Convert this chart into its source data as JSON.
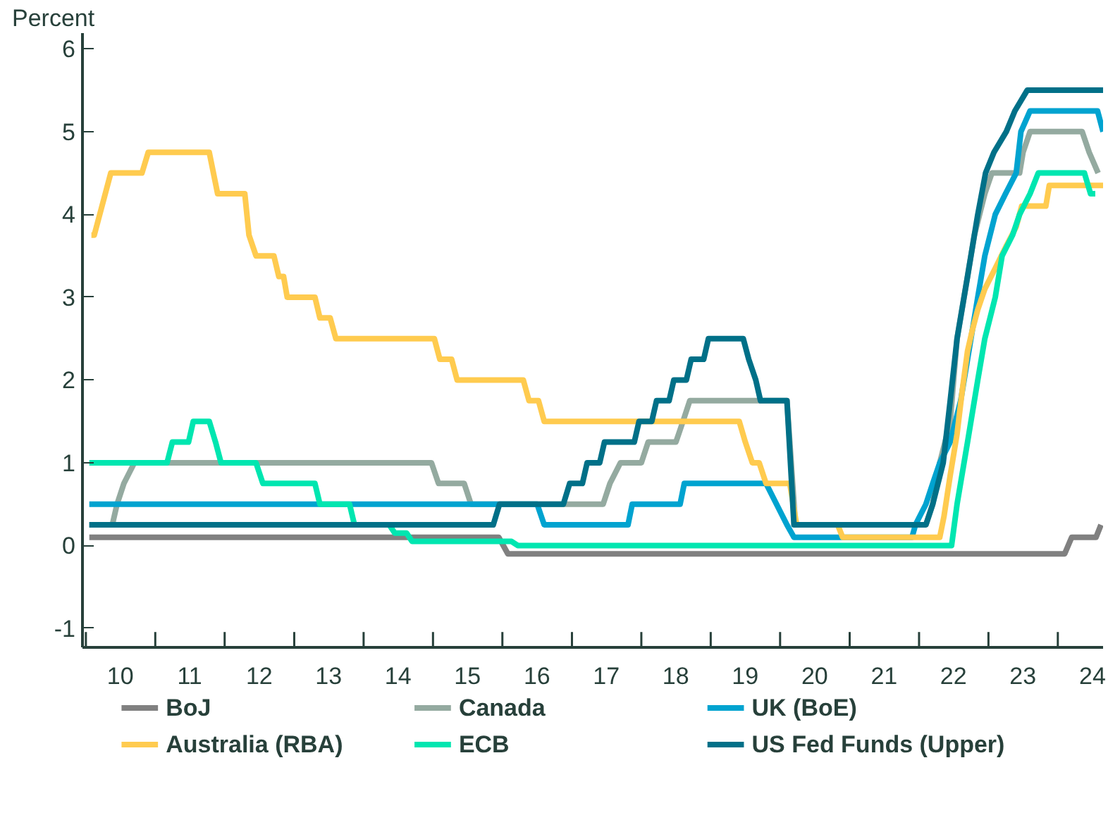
{
  "chart_data": {
    "type": "line",
    "ylabel": "Percent",
    "xlim": [
      "2009-12-14",
      "2024-08-26"
    ],
    "ylim": [
      -1.23,
      6.19
    ],
    "yticks": [
      -1,
      0,
      1,
      2,
      3,
      4,
      5,
      6
    ],
    "xticks": [
      {
        "value": "2010-01-01",
        "label": null
      },
      {
        "value": "2010-07-01",
        "label": "10"
      },
      {
        "value": "2011-01-01",
        "label": null
      },
      {
        "value": "2011-07-01",
        "label": "11"
      },
      {
        "value": "2012-01-01",
        "label": null
      },
      {
        "value": "2012-07-01",
        "label": "12"
      },
      {
        "value": "2013-01-01",
        "label": null
      },
      {
        "value": "2013-07-01",
        "label": "13"
      },
      {
        "value": "2014-01-01",
        "label": null
      },
      {
        "value": "2014-07-01",
        "label": "14"
      },
      {
        "value": "2015-01-01",
        "label": null
      },
      {
        "value": "2015-07-01",
        "label": "15"
      },
      {
        "value": "2016-01-01",
        "label": null
      },
      {
        "value": "2016-07-01",
        "label": "16"
      },
      {
        "value": "2017-01-01",
        "label": null
      },
      {
        "value": "2017-07-01",
        "label": "17"
      },
      {
        "value": "2018-01-01",
        "label": null
      },
      {
        "value": "2018-07-01",
        "label": "18"
      },
      {
        "value": "2019-01-01",
        "label": null
      },
      {
        "value": "2019-07-01",
        "label": "19"
      },
      {
        "value": "2020-01-01",
        "label": null
      },
      {
        "value": "2020-07-01",
        "label": "20"
      },
      {
        "value": "2021-01-01",
        "label": null
      },
      {
        "value": "2021-07-01",
        "label": "21"
      },
      {
        "value": "2022-01-01",
        "label": null
      },
      {
        "value": "2022-07-01",
        "label": "22"
      },
      {
        "value": "2023-01-01",
        "label": null
      },
      {
        "value": "2023-07-01",
        "label": "23"
      },
      {
        "value": "2024-01-01",
        "label": null
      },
      {
        "value": "2024-07-01",
        "label": "24"
      }
    ],
    "legend": "bottom",
    "line_style": "solid",
    "series": [
      {
        "name": "BoJ",
        "color": "#808080",
        "x": [
          "2010-01-19",
          "2015-12-13",
          "2016-01-30",
          "2024-02-06",
          "2024-03-14",
          "2024-07-20",
          "2024-08-15"
        ],
        "values": [
          0.1,
          0.1,
          -0.1,
          -0.1,
          0.1,
          0.1,
          0.25
        ]
      },
      {
        "name": "Canada",
        "color": "#94aaa0",
        "x": [
          "2010-01-19",
          "2010-05-20",
          "2010-06-14",
          "2010-07-20",
          "2010-09-13",
          "2014-12-24",
          "2015-01-30",
          "2015-06-14",
          "2015-07-20",
          "2017-06-14",
          "2017-07-20",
          "2017-09-13",
          "2018-01-01",
          "2018-02-06",
          "2018-07-02",
          "2018-08-08",
          "2018-09-13",
          "2020-02-06",
          "2020-03-22",
          "2022-02-06",
          "2022-03-14",
          "2022-04-20",
          "2022-06-14",
          "2022-07-20",
          "2022-09-13",
          "2022-10-19",
          "2022-12-13",
          "2023-01-19",
          "2023-06-14",
          "2023-07-02",
          "2023-08-08",
          "2024-05-08",
          "2024-06-14",
          "2024-07-31"
        ],
        "values": [
          0.25,
          0.25,
          0.5,
          0.75,
          1.0,
          1.0,
          0.75,
          0.75,
          0.5,
          0.5,
          0.75,
          1.0,
          1.0,
          1.25,
          1.25,
          1.5,
          1.75,
          1.75,
          0.25,
          0.25,
          0.5,
          1.0,
          1.5,
          2.5,
          3.25,
          3.75,
          4.25,
          4.5,
          4.5,
          4.75,
          5.0,
          5.0,
          4.75,
          4.5
        ]
      },
      {
        "name": "UK (BoE)",
        "color": "#00a3d0",
        "x": [
          "2010-01-19",
          "2016-07-02",
          "2016-08-08",
          "2017-10-23",
          "2017-11-14",
          "2018-07-24",
          "2018-08-15",
          "2019-10-19",
          "2020-02-06",
          "2020-03-14",
          "2021-11-25",
          "2021-12-13",
          "2022-02-06",
          "2022-03-14",
          "2022-04-20",
          "2022-06-14",
          "2022-08-08",
          "2022-09-13",
          "2022-11-06",
          "2022-12-13",
          "2023-02-06",
          "2023-04-01",
          "2023-05-27",
          "2023-06-21",
          "2023-08-08",
          "2024-07-28",
          "2024-08-26"
        ],
        "values": [
          0.5,
          0.5,
          0.25,
          0.25,
          0.5,
          0.5,
          0.75,
          0.75,
          0.25,
          0.1,
          0.1,
          0.25,
          0.5,
          0.75,
          1.0,
          1.25,
          1.75,
          2.25,
          3.0,
          3.5,
          4.0,
          4.25,
          4.5,
          5.0,
          5.25,
          5.25,
          5.0
        ]
      },
      {
        "name": "Australia (RBA)",
        "color": "#ffcb4f",
        "x": [
          "2010-01-30",
          "2010-02-14",
          "2010-05-12",
          "2010-10-23",
          "2010-11-25",
          "2011-10-12",
          "2011-11-25",
          "2012-04-16",
          "2012-05-08",
          "2012-06-14",
          "2012-09-16",
          "2012-10-12",
          "2012-11-06",
          "2012-11-25",
          "2013-04-20",
          "2013-05-16",
          "2013-07-09",
          "2013-08-08",
          "2015-01-08",
          "2015-02-06",
          "2015-04-09",
          "2015-05-08",
          "2016-04-20",
          "2016-05-20",
          "2016-07-09",
          "2016-08-08",
          "2019-05-31",
          "2019-07-02",
          "2019-08-08",
          "2019-09-13",
          "2019-10-19",
          "2020-02-21",
          "2020-03-28",
          "2020-10-30",
          "2020-11-25",
          "2022-04-20",
          "2022-05-12",
          "2022-06-14",
          "2022-07-20",
          "2022-08-15",
          "2022-09-13",
          "2022-10-08",
          "2022-11-06",
          "2022-12-13",
          "2023-02-06",
          "2023-04-01",
          "2023-05-27",
          "2023-06-25",
          "2023-10-30",
          "2023-11-17",
          "2024-08-26"
        ],
        "values": [
          3.75,
          3.75,
          4.5,
          4.5,
          4.75,
          4.75,
          4.25,
          4.25,
          3.75,
          3.5,
          3.5,
          3.25,
          3.25,
          3.0,
          3.0,
          2.75,
          2.75,
          2.5,
          2.5,
          2.25,
          2.25,
          2.0,
          2.0,
          1.75,
          1.75,
          1.5,
          1.5,
          1.25,
          1.0,
          1.0,
          0.75,
          0.75,
          0.25,
          0.25,
          0.1,
          0.1,
          0.35,
          0.85,
          1.35,
          1.85,
          2.35,
          2.6,
          2.85,
          3.1,
          3.35,
          3.6,
          3.85,
          4.1,
          4.1,
          4.35,
          4.35
        ]
      },
      {
        "name": "ECB",
        "color": "#00e6b0",
        "x": [
          "2010-01-19",
          "2011-03-04",
          "2011-04-01",
          "2011-06-25",
          "2011-07-20",
          "2011-10-12",
          "2011-11-14",
          "2011-12-13",
          "2012-06-14",
          "2012-07-20",
          "2013-04-20",
          "2013-05-16",
          "2013-10-19",
          "2013-11-14",
          "2014-05-16",
          "2014-06-14",
          "2014-08-15",
          "2014-09-13",
          "2016-02-18",
          "2016-03-22",
          "2022-06-21",
          "2022-07-20",
          "2022-09-13",
          "2022-11-06",
          "2022-12-13",
          "2023-02-06",
          "2023-03-14",
          "2023-05-08",
          "2023-06-14",
          "2023-08-08",
          "2023-09-20",
          "2024-05-20",
          "2024-06-21",
          "2024-07-16"
        ],
        "values": [
          1.0,
          1.0,
          1.25,
          1.25,
          1.5,
          1.5,
          1.25,
          1.0,
          1.0,
          0.75,
          0.75,
          0.5,
          0.5,
          0.25,
          0.25,
          0.15,
          0.15,
          0.05,
          0.05,
          0.0,
          0.0,
          0.5,
          1.25,
          2.0,
          2.5,
          3.0,
          3.5,
          3.75,
          4.0,
          4.25,
          4.5,
          4.5,
          4.25,
          4.25
        ]
      },
      {
        "name": "US Fed Funds (Upper)",
        "color": "#007088",
        "x": [
          "2010-01-19",
          "2015-11-14",
          "2015-12-17",
          "2016-11-17",
          "2016-12-20",
          "2017-02-25",
          "2017-03-22",
          "2017-05-27",
          "2017-06-21",
          "2017-11-25",
          "2017-12-20",
          "2018-02-25",
          "2018-03-22",
          "2018-05-27",
          "2018-06-21",
          "2018-08-26",
          "2018-09-20",
          "2018-11-25",
          "2018-12-20",
          "2019-06-21",
          "2019-07-20",
          "2019-08-26",
          "2019-09-20",
          "2019-10-19",
          "2020-02-06",
          "2020-03-14",
          "2022-02-06",
          "2022-03-14",
          "2022-05-08",
          "2022-06-14",
          "2022-07-20",
          "2022-09-13",
          "2022-11-06",
          "2022-12-17",
          "2023-01-30",
          "2023-04-05",
          "2023-05-20",
          "2023-07-24",
          "2024-08-26"
        ],
        "values": [
          0.25,
          0.25,
          0.5,
          0.5,
          0.75,
          0.75,
          1.0,
          1.0,
          1.25,
          1.25,
          1.5,
          1.5,
          1.75,
          1.75,
          2.0,
          2.0,
          2.25,
          2.25,
          2.5,
          2.5,
          2.25,
          2.0,
          1.75,
          1.75,
          1.75,
          0.25,
          0.25,
          0.5,
          1.0,
          1.75,
          2.5,
          3.25,
          4.0,
          4.5,
          4.75,
          5.0,
          5.25,
          5.5,
          5.5
        ]
      }
    ]
  }
}
